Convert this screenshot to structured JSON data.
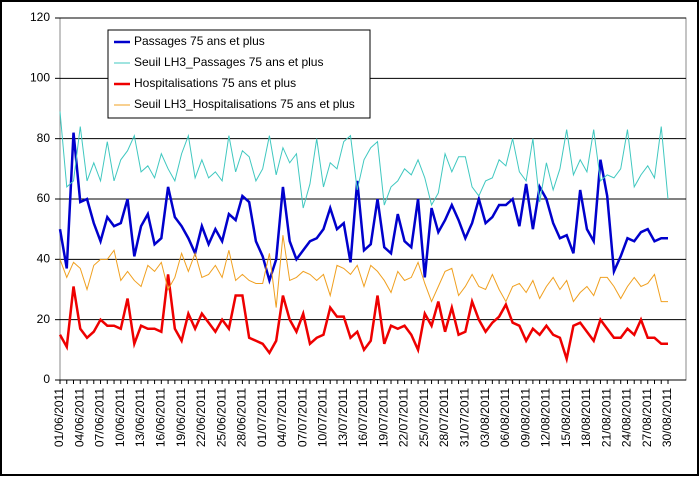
{
  "chart_data": {
    "type": "line",
    "categories": [
      "01/06/2011",
      null,
      null,
      "04/06/2011",
      null,
      null,
      "07/06/2011",
      null,
      null,
      "10/06/2011",
      null,
      null,
      "13/06/2011",
      null,
      null,
      "16/06/2011",
      null,
      null,
      "19/06/2011",
      null,
      null,
      "22/06/2011",
      null,
      null,
      "25/06/2011",
      null,
      null,
      "28/06/2011",
      null,
      null,
      "01/07/2011",
      null,
      null,
      "04/07/2011",
      null,
      null,
      "07/07/2011",
      null,
      null,
      "10/07/2011",
      null,
      null,
      "13/07/2011",
      null,
      null,
      "16/07/2011",
      null,
      null,
      "19/07/2011",
      null,
      null,
      "22/07/2011",
      null,
      null,
      "25/07/2011",
      null,
      null,
      "28/07/2011",
      null,
      null,
      "31/07/2011",
      null,
      null,
      "03/08/2011",
      null,
      null,
      "06/08/2011",
      null,
      null,
      "09/08/2011",
      null,
      null,
      "12/08/2011",
      null,
      null,
      "15/08/2011",
      null,
      null,
      "18/08/2011",
      null,
      null,
      "21/08/2011",
      null,
      null,
      "24/08/2011",
      null,
      null,
      "27/08/2011",
      null,
      null,
      "30/08/2011"
    ],
    "series": [
      {
        "name": "Passages 75 ans et plus",
        "color": "#0000cc",
        "width": 2.5,
        "values": [
          50,
          37,
          82,
          59,
          60,
          52,
          46,
          54,
          51,
          52,
          60,
          41,
          51,
          55,
          45,
          47,
          64,
          54,
          51,
          47,
          42,
          51,
          45,
          50,
          46,
          55,
          53,
          61,
          59,
          46,
          41,
          33,
          40,
          64,
          46,
          40,
          43,
          46,
          47,
          50,
          57,
          50,
          52,
          39,
          66,
          43,
          45,
          60,
          44,
          42,
          55,
          46,
          44,
          60,
          34,
          57,
          49,
          53,
          58,
          53,
          47,
          52,
          60,
          52,
          54,
          58,
          58,
          60,
          51,
          65,
          50,
          64,
          60,
          52,
          47,
          48,
          42,
          63,
          50,
          46,
          73,
          61,
          36,
          41,
          47,
          46,
          49,
          50,
          46,
          47,
          47
        ]
      },
      {
        "name": "Seuil LH3_Passages 75 ans et plus",
        "color": "#40c8c0",
        "width": 1,
        "values": [
          89,
          64,
          66,
          84,
          66,
          72,
          66,
          79,
          66,
          73,
          76,
          81,
          69,
          71,
          67,
          75,
          70,
          66,
          75,
          81,
          67,
          73,
          67,
          69,
          66,
          81,
          69,
          76,
          74,
          66,
          70,
          81,
          68,
          77,
          72,
          75,
          57,
          65,
          80,
          64,
          72,
          70,
          79,
          81,
          63,
          73,
          77,
          79,
          58,
          64,
          66,
          70,
          68,
          73,
          67,
          58,
          62,
          75,
          69,
          74,
          74,
          64,
          61,
          66,
          67,
          73,
          71,
          80,
          69,
          66,
          80,
          59,
          72,
          63,
          70,
          83,
          68,
          73,
          69,
          83,
          66,
          68,
          67,
          70,
          83,
          64,
          68,
          71,
          67,
          84,
          60
        ]
      },
      {
        "name": "Hospitalisations 75 ans et plus",
        "color": "#ee0000",
        "width": 2.5,
        "values": [
          15,
          11,
          31,
          17,
          14,
          16,
          20,
          18,
          18,
          17,
          27,
          12,
          18,
          17,
          17,
          16,
          35,
          17,
          13,
          22,
          17,
          22,
          19,
          16,
          20,
          17,
          28,
          28,
          14,
          13,
          12,
          9,
          13,
          28,
          20,
          16,
          22,
          12,
          14,
          15,
          24,
          21,
          21,
          14,
          16,
          10,
          13,
          28,
          12,
          18,
          17,
          18,
          15,
          10,
          22,
          18,
          26,
          16,
          24,
          15,
          16,
          26,
          20,
          16,
          19,
          21,
          25,
          19,
          18,
          13,
          17,
          15,
          18,
          15,
          14,
          7,
          18,
          19,
          16,
          13,
          20,
          17,
          14,
          14,
          17,
          15,
          20,
          14,
          14,
          12,
          12
        ]
      },
      {
        "name": "Seuil LH3_Hospitalisations 75 ans et plus",
        "color": "#f0a020",
        "width": 1,
        "values": [
          40,
          34,
          39,
          37,
          30,
          38,
          40,
          40,
          43,
          33,
          36,
          33,
          31,
          38,
          36,
          39,
          30,
          34,
          42,
          36,
          42,
          34,
          35,
          38,
          34,
          43,
          33,
          35,
          33,
          32,
          32,
          42,
          24,
          48,
          33,
          34,
          36,
          35,
          33,
          35,
          28,
          38,
          37,
          35,
          38,
          31,
          38,
          36,
          33,
          29,
          36,
          33,
          34,
          39,
          32,
          26,
          31,
          36,
          37,
          28,
          31,
          35,
          31,
          30,
          35,
          30,
          26,
          31,
          32,
          29,
          33,
          27,
          31,
          34,
          30,
          33,
          26,
          29,
          31,
          28,
          34,
          34,
          31,
          27,
          31,
          34,
          31,
          32,
          35,
          26,
          26
        ]
      }
    ],
    "ylim": [
      0,
      120
    ],
    "yticks": [
      0,
      20,
      40,
      60,
      80,
      100,
      120
    ],
    "grid": true,
    "legend": "top-left"
  }
}
